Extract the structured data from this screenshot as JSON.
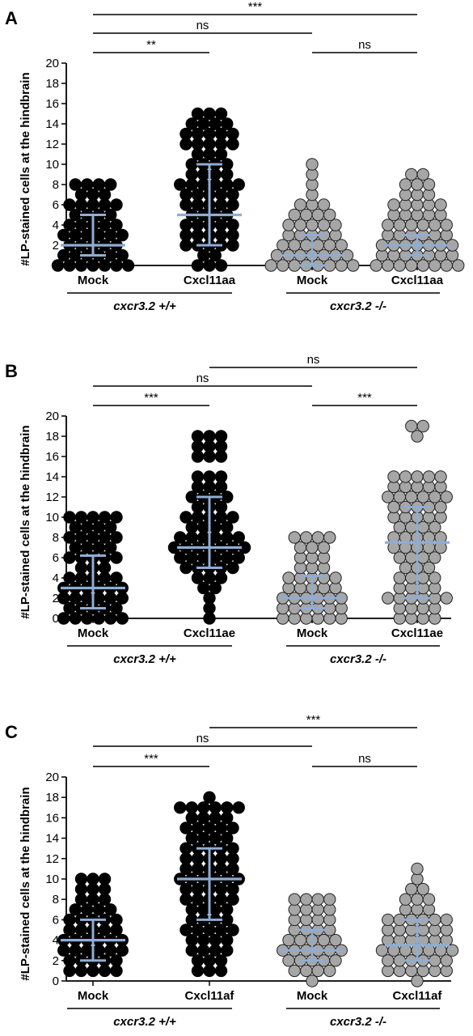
{
  "chart_data": [
    {
      "type": "scatter",
      "panel": "A",
      "ylabel": "#LP-stained cells at the hindbrain",
      "ylim": [
        0,
        20
      ],
      "yticks": [
        "0",
        "2",
        "4",
        "6",
        "8",
        "10",
        "12",
        "14",
        "16",
        "18",
        "20"
      ],
      "categories": [
        "Mock",
        "Cxcl11aa",
        "Mock",
        "Cxcl11aa"
      ],
      "groups": [
        {
          "label": "cxcr3.2 +/+",
          "span": [
            0,
            1
          ]
        },
        {
          "label": "cxcr3.2 -/-",
          "span": [
            2,
            3
          ]
        }
      ],
      "point_colors": [
        "#000000",
        "#000000",
        "#a6a6a6",
        "#a6a6a6"
      ],
      "summary_color": "#8fadd4",
      "summary": [
        {
          "median": 2,
          "q1": 1,
          "q3": 5
        },
        {
          "median": 5,
          "q1": 2,
          "q3": 10
        },
        {
          "median": 1,
          "q1": 0,
          "q3": 3
        },
        {
          "median": 2,
          "q1": 1,
          "q3": 3
        }
      ],
      "counts": [
        {
          "0": 7,
          "1": 6,
          "2": 5,
          "3": 6,
          "4": 5,
          "5": 4,
          "6": 5,
          "7": 3,
          "8": 4
        },
        {
          "0": 3,
          "1": 2,
          "2": 5,
          "3": 5,
          "4": 5,
          "5": 4,
          "6": 5,
          "7": 5,
          "8": 6,
          "9": 4,
          "10": 4,
          "11": 3,
          "12": 5,
          "13": 5,
          "14": 4,
          "15": 3
        },
        {
          "0": 8,
          "1": 7,
          "2": 6,
          "3": 5,
          "4": 5,
          "5": 4,
          "6": 3,
          "7": 1,
          "8": 1,
          "9": 1,
          "10": 1
        },
        {
          "0": 8,
          "1": 7,
          "2": 7,
          "3": 6,
          "4": 6,
          "5": 5,
          "6": 5,
          "7": 3,
          "8": 3,
          "9": 2
        }
      ],
      "comparisons": [
        {
          "from": 0,
          "to": 3,
          "label": "***",
          "level": 3
        },
        {
          "from": 0,
          "to": 2,
          "label": "ns",
          "level": 2
        },
        {
          "from": 0,
          "to": 1,
          "label": "**",
          "level": 1
        },
        {
          "from": 2,
          "to": 3,
          "label": "ns",
          "level": 1
        }
      ]
    },
    {
      "type": "scatter",
      "panel": "B",
      "ylabel": "#LP-stained cells at the hindbrain",
      "ylim": [
        0,
        20
      ],
      "yticks": [
        "0",
        "2",
        "4",
        "6",
        "8",
        "10",
        "12",
        "14",
        "16",
        "18",
        "20"
      ],
      "categories": [
        "Mock",
        "Cxcl11ae",
        "Mock",
        "Cxcl11ae"
      ],
      "groups": [
        {
          "label": "cxcr3.2 +/+",
          "span": [
            0,
            1
          ]
        },
        {
          "label": "cxcr3.2 -/-",
          "span": [
            2,
            3
          ]
        }
      ],
      "point_colors": [
        "#000000",
        "#000000",
        "#a6a6a6",
        "#a6a6a6"
      ],
      "summary_color": "#8fadd4",
      "summary": [
        {
          "median": 3,
          "q1": 1,
          "q3": 6.2
        },
        {
          "median": 7,
          "q1": 5,
          "q3": 12
        },
        {
          "median": 2,
          "q1": 1,
          "q3": 4.2
        },
        {
          "median": 7.5,
          "q1": 2,
          "q3": 11
        }
      ],
      "counts": [
        {
          "0": 6,
          "1": 5,
          "2": 6,
          "3": 6,
          "4": 5,
          "5": 3,
          "6": 5,
          "7": 4,
          "8": 5,
          "9": 4,
          "10": 5
        },
        {
          "0": 1,
          "1": 1,
          "2": 1,
          "3": 2,
          "4": 3,
          "5": 5,
          "6": 6,
          "7": 7,
          "8": 6,
          "9": 4,
          "10": 5,
          "11": 3,
          "12": 4,
          "13": 3,
          "14": 3,
          "16": 3,
          "17": 3,
          "18": 3
        },
        {
          "0": 6,
          "1": 6,
          "2": 6,
          "3": 5,
          "4": 5,
          "5": 3,
          "6": 3,
          "7": 3,
          "8": 4
        },
        {
          "0": 4,
          "1": 4,
          "2": 6,
          "3": 4,
          "4": 4,
          "5": 3,
          "6": 4,
          "7": 5,
          "8": 5,
          "9": 4,
          "10": 5,
          "11": 5,
          "12": 6,
          "13": 5,
          "14": 5,
          "18": 1,
          "19": 2
        }
      ],
      "comparisons": [
        {
          "from": 1,
          "to": 3,
          "label": "ns",
          "level": 3
        },
        {
          "from": 0,
          "to": 2,
          "label": "ns",
          "level": 2
        },
        {
          "from": 0,
          "to": 1,
          "label": "***",
          "level": 1
        },
        {
          "from": 2,
          "to": 3,
          "label": "***",
          "level": 1
        }
      ]
    },
    {
      "type": "scatter",
      "panel": "C",
      "ylabel": "#LP-stained cells at the hindbrain",
      "ylim": [
        0,
        20
      ],
      "yticks": [
        "0",
        "2",
        "4",
        "6",
        "8",
        "10",
        "12",
        "14",
        "16",
        "18",
        "20"
      ],
      "categories": [
        "Mock",
        "Cxcl11af",
        "Mock",
        "Cxcl11af"
      ],
      "groups": [
        {
          "label": "cxcr3.2 +/+",
          "span": [
            0,
            1
          ]
        },
        {
          "label": "cxcr3.2 -/-",
          "span": [
            2,
            3
          ]
        }
      ],
      "point_colors": [
        "#000000",
        "#000000",
        "#a6a6a6",
        "#a6a6a6"
      ],
      "summary_color": "#8fadd4",
      "summary": [
        {
          "median": 4,
          "q1": 2,
          "q3": 6
        },
        {
          "median": 10,
          "q1": 6,
          "q3": 13
        },
        {
          "median": 3,
          "q1": 2,
          "q3": 5
        },
        {
          "median": 3.5,
          "q1": 2,
          "q3": 6
        }
      ],
      "counts": [
        {
          "1": 5,
          "2": 5,
          "3": 6,
          "4": 6,
          "5": 5,
          "6": 5,
          "7": 4,
          "8": 3,
          "9": 3,
          "10": 3
        },
        {
          "1": 3,
          "2": 3,
          "3": 4,
          "4": 4,
          "5": 5,
          "6": 4,
          "7": 4,
          "8": 5,
          "9": 5,
          "10": 6,
          "11": 5,
          "12": 5,
          "13": 5,
          "14": 4,
          "15": 5,
          "16": 4,
          "17": 6,
          "18": 1
        },
        {
          "0": 1,
          "1": 4,
          "2": 5,
          "3": 6,
          "4": 5,
          "5": 4,
          "6": 4,
          "7": 4,
          "8": 4
        },
        {
          "0": 1,
          "1": 6,
          "2": 6,
          "3": 7,
          "4": 6,
          "5": 6,
          "6": 6,
          "7": 3,
          "8": 3,
          "9": 2,
          "10": 1,
          "11": 1
        }
      ],
      "comparisons": [
        {
          "from": 1,
          "to": 3,
          "label": "***",
          "level": 3
        },
        {
          "from": 0,
          "to": 2,
          "label": "ns",
          "level": 2
        },
        {
          "from": 0,
          "to": 1,
          "label": "***",
          "level": 1
        },
        {
          "from": 2,
          "to": 3,
          "label": "ns",
          "level": 1
        }
      ]
    }
  ]
}
